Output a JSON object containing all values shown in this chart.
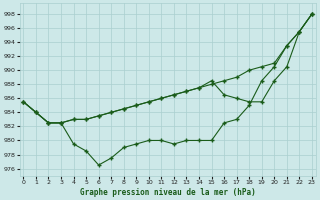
{
  "title": "Graphe pression niveau de la mer (hPa)",
  "background_color": "#cde8e8",
  "grid_color": "#aacfcf",
  "line_color": "#1a5c1a",
  "x_ticks": [
    0,
    1,
    2,
    3,
    4,
    5,
    6,
    7,
    8,
    9,
    10,
    11,
    12,
    13,
    14,
    15,
    16,
    17,
    18,
    19,
    20,
    21,
    22,
    23
  ],
  "y_ticks": [
    976,
    978,
    980,
    982,
    984,
    986,
    988,
    990,
    992,
    994,
    996,
    998
  ],
  "ylim": [
    975.0,
    999.5
  ],
  "xlim": [
    -0.3,
    23.3
  ],
  "series1_y": [
    985.5,
    984.0,
    982.5,
    982.5,
    983.0,
    983.0,
    983.5,
    984.0,
    984.5,
    985.0,
    985.5,
    986.0,
    986.5,
    987.0,
    987.5,
    988.0,
    988.5,
    989.0,
    990.0,
    990.5,
    991.0,
    993.5,
    995.5,
    998.0
  ],
  "series2_y": [
    985.5,
    984.0,
    982.5,
    982.5,
    983.0,
    983.0,
    983.5,
    984.0,
    984.5,
    985.0,
    985.5,
    986.0,
    986.5,
    987.0,
    987.5,
    988.5,
    986.5,
    986.0,
    985.5,
    985.5,
    988.5,
    990.5,
    995.5,
    998.0
  ],
  "series3_y": [
    985.5,
    984.0,
    982.5,
    982.5,
    979.5,
    978.5,
    976.5,
    977.5,
    979.0,
    979.5,
    980.0,
    980.0,
    979.5,
    980.0,
    980.0,
    980.0,
    982.5,
    983.0,
    985.0,
    988.5,
    990.5,
    993.5,
    995.5,
    998.0
  ]
}
